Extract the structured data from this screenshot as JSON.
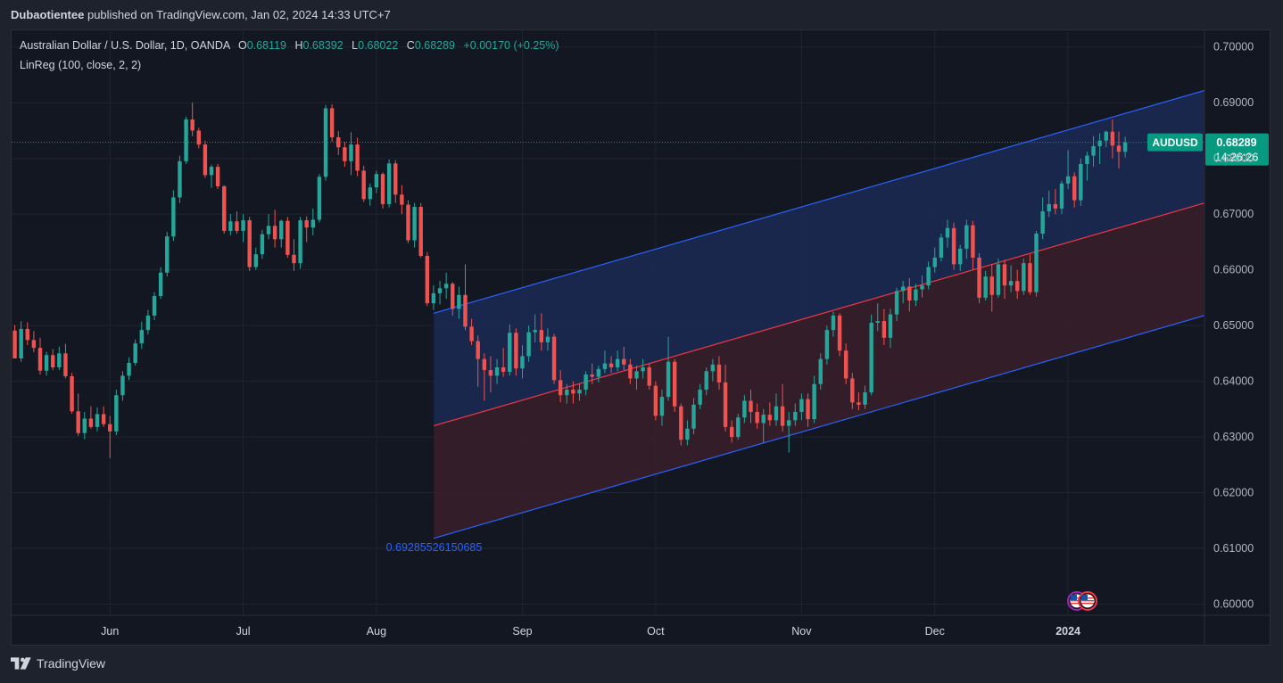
{
  "header": {
    "author": "Dubaotientee",
    "published_text": "published on TradingView.com, Jan 02, 2024 14:33 UTC+7"
  },
  "legend": {
    "instrument": "Australian Dollar / U.S. Dollar, 1D, OANDA",
    "o_label": "O",
    "o_value": "0.68119",
    "h_label": "H",
    "h_value": "0.68392",
    "l_label": "L",
    "l_value": "0.68022",
    "c_label": "C",
    "c_value": "0.68289",
    "change": "+0.00170 (+0.25%)",
    "indicator": "LinReg (100, close, 2, 2)"
  },
  "footer": {
    "brand": "TradingView"
  },
  "colors": {
    "background": "#131722",
    "grid": "#1f2430",
    "up": "#26a69a",
    "down": "#ef5350",
    "channel_line": "#2962ff",
    "regression_line": "#f23645",
    "upper_fill": "#1a2a52",
    "lower_fill": "#3a1f2a",
    "price_tag": "#089981"
  },
  "chart_data": {
    "type": "candlestick",
    "symbol": "AUDUSD",
    "timeframe": "1D",
    "ylim": [
      0.598,
      0.703
    ],
    "y_ticks": [
      "0.70000",
      "0.69000",
      "0.68000",
      "0.67000",
      "0.66000",
      "0.65000",
      "0.64000",
      "0.63000",
      "0.62000",
      "0.61000",
      "0.60000"
    ],
    "x_ticks": [
      {
        "label": "Jun",
        "index": 15
      },
      {
        "label": "Jul",
        "index": 36
      },
      {
        "label": "Aug",
        "index": 57
      },
      {
        "label": "Sep",
        "index": 80
      },
      {
        "label": "Oct",
        "index": 101
      },
      {
        "label": "Nov",
        "index": 124
      },
      {
        "label": "Dec",
        "index": 145
      },
      {
        "label": "2024",
        "index": 166
      }
    ],
    "index_range": [
      -0.5,
      187.5
    ],
    "current_price": {
      "label": "AUDUSD",
      "value": 0.68289,
      "value_text": "0.68289",
      "countdown": "14:26:26"
    },
    "linreg": {
      "start_index": 66,
      "end_index": 187.5,
      "mid_start": 0.632,
      "mid_end": 0.672,
      "upper_start": 0.6522,
      "upper_end": 0.6922,
      "lower_start": 0.6118,
      "lower_end": 0.6518,
      "label": "0.69285526150685",
      "label_value": 0.6127,
      "label_index": 58.5
    },
    "event_icons": 2,
    "ohlc": [
      [
        0.6491,
        0.6501,
        0.6441,
        0.6441
      ],
      [
        0.6441,
        0.6508,
        0.6435,
        0.6494
      ],
      [
        0.6494,
        0.6506,
        0.6465,
        0.6474
      ],
      [
        0.6474,
        0.649,
        0.6452,
        0.646
      ],
      [
        0.646,
        0.6478,
        0.6412,
        0.6419
      ],
      [
        0.6419,
        0.6453,
        0.641,
        0.6447
      ],
      [
        0.6447,
        0.6458,
        0.642,
        0.6425
      ],
      [
        0.6425,
        0.6462,
        0.642,
        0.645
      ],
      [
        0.645,
        0.6467,
        0.6405,
        0.6409
      ],
      [
        0.6409,
        0.6415,
        0.6342,
        0.6346
      ],
      [
        0.6346,
        0.6378,
        0.6302,
        0.6307
      ],
      [
        0.6307,
        0.6345,
        0.6296,
        0.6333
      ],
      [
        0.6333,
        0.6355,
        0.6315,
        0.6318
      ],
      [
        0.6318,
        0.6353,
        0.631,
        0.6341
      ],
      [
        0.6341,
        0.6355,
        0.6318,
        0.6323
      ],
      [
        0.6323,
        0.6338,
        0.6262,
        0.631
      ],
      [
        0.631,
        0.6385,
        0.6303,
        0.6375
      ],
      [
        0.6375,
        0.6418,
        0.6365,
        0.641
      ],
      [
        0.641,
        0.6443,
        0.6402,
        0.6433
      ],
      [
        0.6433,
        0.6475,
        0.6428,
        0.6468
      ],
      [
        0.6468,
        0.6507,
        0.6458,
        0.6492
      ],
      [
        0.6492,
        0.6528,
        0.6484,
        0.6518
      ],
      [
        0.6518,
        0.656,
        0.651,
        0.6553
      ],
      [
        0.6553,
        0.6605,
        0.6548,
        0.6595
      ],
      [
        0.6595,
        0.6668,
        0.6588,
        0.666
      ],
      [
        0.666,
        0.6743,
        0.6652,
        0.673
      ],
      [
        0.673,
        0.6805,
        0.672,
        0.6795
      ],
      [
        0.6795,
        0.6875,
        0.679,
        0.687
      ],
      [
        0.687,
        0.69,
        0.684,
        0.685
      ],
      [
        0.685,
        0.6855,
        0.6818,
        0.6825
      ],
      [
        0.6825,
        0.6832,
        0.6765,
        0.677
      ],
      [
        0.677,
        0.6789,
        0.6747,
        0.6785
      ],
      [
        0.6785,
        0.679,
        0.6745,
        0.675
      ],
      [
        0.675,
        0.6752,
        0.6665,
        0.667
      ],
      [
        0.667,
        0.67,
        0.6662,
        0.6687
      ],
      [
        0.6687,
        0.6705,
        0.6665,
        0.667
      ],
      [
        0.667,
        0.67,
        0.665,
        0.6689
      ],
      [
        0.6689,
        0.6695,
        0.6598,
        0.6605
      ],
      [
        0.6605,
        0.664,
        0.66,
        0.6628
      ],
      [
        0.6628,
        0.6672,
        0.662,
        0.6664
      ],
      [
        0.6664,
        0.67,
        0.6655,
        0.6679
      ],
      [
        0.6679,
        0.6708,
        0.664,
        0.6655
      ],
      [
        0.6655,
        0.669,
        0.664,
        0.6688
      ],
      [
        0.6688,
        0.6695,
        0.6622,
        0.6627
      ],
      [
        0.6627,
        0.6655,
        0.6598,
        0.6612
      ],
      [
        0.6612,
        0.6695,
        0.6602,
        0.6689
      ],
      [
        0.6689,
        0.6696,
        0.665,
        0.6676
      ],
      [
        0.6676,
        0.671,
        0.6662,
        0.669
      ],
      [
        0.669,
        0.6772,
        0.6685,
        0.6767
      ],
      [
        0.6767,
        0.6896,
        0.676,
        0.689
      ],
      [
        0.689,
        0.6897,
        0.683,
        0.6838
      ],
      [
        0.6838,
        0.6849,
        0.6806,
        0.682
      ],
      [
        0.682,
        0.683,
        0.6785,
        0.6795
      ],
      [
        0.6795,
        0.6847,
        0.677,
        0.6825
      ],
      [
        0.6825,
        0.6837,
        0.6768,
        0.6778
      ],
      [
        0.6778,
        0.6787,
        0.6722,
        0.6727
      ],
      [
        0.6727,
        0.6755,
        0.6715,
        0.6748
      ],
      [
        0.6748,
        0.6778,
        0.6738,
        0.6772
      ],
      [
        0.6772,
        0.6775,
        0.671,
        0.6718
      ],
      [
        0.6718,
        0.6798,
        0.6712,
        0.6791
      ],
      [
        0.6791,
        0.6797,
        0.672,
        0.6735
      ],
      [
        0.6735,
        0.6752,
        0.67,
        0.6717
      ],
      [
        0.6717,
        0.6725,
        0.6648,
        0.6653
      ],
      [
        0.6653,
        0.672,
        0.664,
        0.6713
      ],
      [
        0.6713,
        0.672,
        0.6622,
        0.6625
      ],
      [
        0.6625,
        0.6632,
        0.6535,
        0.654
      ],
      [
        0.654,
        0.6572,
        0.6528,
        0.6558
      ],
      [
        0.6558,
        0.658,
        0.6538,
        0.6567
      ],
      [
        0.6567,
        0.6595,
        0.6548,
        0.6575
      ],
      [
        0.6575,
        0.6578,
        0.6518,
        0.653
      ],
      [
        0.653,
        0.657,
        0.6512,
        0.6555
      ],
      [
        0.6555,
        0.661,
        0.6492,
        0.6498
      ],
      [
        0.6498,
        0.6512,
        0.6465,
        0.6472
      ],
      [
        0.6472,
        0.6482,
        0.639,
        0.644
      ],
      [
        0.644,
        0.645,
        0.6365,
        0.642
      ],
      [
        0.642,
        0.6445,
        0.638,
        0.641
      ],
      [
        0.641,
        0.644,
        0.6395,
        0.6425
      ],
      [
        0.6425,
        0.646,
        0.6408,
        0.6417
      ],
      [
        0.6417,
        0.6502,
        0.641,
        0.6487
      ],
      [
        0.6487,
        0.6495,
        0.641,
        0.6423
      ],
      [
        0.6423,
        0.6465,
        0.6405,
        0.6445
      ],
      [
        0.6445,
        0.65,
        0.6435,
        0.6488
      ],
      [
        0.6488,
        0.652,
        0.647,
        0.6492
      ],
      [
        0.6492,
        0.6522,
        0.6455,
        0.647
      ],
      [
        0.647,
        0.6495,
        0.6455,
        0.648
      ],
      [
        0.648,
        0.6485,
        0.6395,
        0.6402
      ],
      [
        0.6402,
        0.642,
        0.6362,
        0.6375
      ],
      [
        0.6375,
        0.6395,
        0.636,
        0.6385
      ],
      [
        0.6385,
        0.64,
        0.636,
        0.6378
      ],
      [
        0.6378,
        0.6395,
        0.6365,
        0.6385
      ],
      [
        0.6385,
        0.6418,
        0.6375,
        0.6412
      ],
      [
        0.6412,
        0.6432,
        0.6395,
        0.6408
      ],
      [
        0.6408,
        0.6428,
        0.6398,
        0.6422
      ],
      [
        0.6422,
        0.6455,
        0.6415,
        0.6432
      ],
      [
        0.6432,
        0.6445,
        0.6415,
        0.6425
      ],
      [
        0.6425,
        0.6455,
        0.6418,
        0.644
      ],
      [
        0.644,
        0.6462,
        0.642,
        0.643
      ],
      [
        0.643,
        0.644,
        0.6395,
        0.6405
      ],
      [
        0.6405,
        0.6428,
        0.6385,
        0.6418
      ],
      [
        0.6418,
        0.644,
        0.6405,
        0.6425
      ],
      [
        0.6425,
        0.6432,
        0.6385,
        0.6392
      ],
      [
        0.6392,
        0.64,
        0.633,
        0.6338
      ],
      [
        0.6338,
        0.6385,
        0.632,
        0.6372
      ],
      [
        0.6372,
        0.648,
        0.6365,
        0.6435
      ],
      [
        0.6435,
        0.644,
        0.6345,
        0.6355
      ],
      [
        0.6355,
        0.636,
        0.6285,
        0.6295
      ],
      [
        0.6295,
        0.633,
        0.6285,
        0.6315
      ],
      [
        0.6315,
        0.637,
        0.6305,
        0.6358
      ],
      [
        0.6358,
        0.6395,
        0.635,
        0.6385
      ],
      [
        0.6385,
        0.6425,
        0.6375,
        0.6418
      ],
      [
        0.6418,
        0.644,
        0.64,
        0.643
      ],
      [
        0.643,
        0.6445,
        0.6385,
        0.6398
      ],
      [
        0.6398,
        0.643,
        0.631,
        0.6318
      ],
      [
        0.6318,
        0.633,
        0.629,
        0.63
      ],
      [
        0.63,
        0.6342,
        0.6295,
        0.6335
      ],
      [
        0.6335,
        0.6375,
        0.6325,
        0.6365
      ],
      [
        0.6365,
        0.6385,
        0.6325,
        0.6345
      ],
      [
        0.6345,
        0.636,
        0.6315,
        0.6325
      ],
      [
        0.6325,
        0.635,
        0.629,
        0.634
      ],
      [
        0.634,
        0.6362,
        0.632,
        0.633
      ],
      [
        0.633,
        0.6378,
        0.632,
        0.6355
      ],
      [
        0.6355,
        0.6395,
        0.631,
        0.632
      ],
      [
        0.632,
        0.6345,
        0.6272,
        0.633
      ],
      [
        0.633,
        0.636,
        0.632,
        0.6345
      ],
      [
        0.6345,
        0.6378,
        0.633,
        0.6368
      ],
      [
        0.6368,
        0.6378,
        0.6318,
        0.6332
      ],
      [
        0.6332,
        0.641,
        0.6325,
        0.6395
      ],
      [
        0.6395,
        0.645,
        0.6385,
        0.644
      ],
      [
        0.644,
        0.65,
        0.643,
        0.6492
      ],
      [
        0.6492,
        0.6525,
        0.648,
        0.6518
      ],
      [
        0.6518,
        0.6522,
        0.6445,
        0.6455
      ],
      [
        0.6455,
        0.6468,
        0.6395,
        0.6405
      ],
      [
        0.6405,
        0.6415,
        0.635,
        0.6362
      ],
      [
        0.6362,
        0.638,
        0.6348,
        0.6358
      ],
      [
        0.6358,
        0.6392,
        0.635,
        0.638
      ],
      [
        0.638,
        0.652,
        0.6375,
        0.6505
      ],
      [
        0.6505,
        0.654,
        0.649,
        0.6508
      ],
      [
        0.6508,
        0.653,
        0.6465,
        0.6478
      ],
      [
        0.6478,
        0.653,
        0.646,
        0.652
      ],
      [
        0.652,
        0.6568,
        0.6508,
        0.6562
      ],
      [
        0.6562,
        0.658,
        0.654,
        0.657
      ],
      [
        0.657,
        0.6585,
        0.6525,
        0.6545
      ],
      [
        0.6545,
        0.6575,
        0.6535,
        0.6565
      ],
      [
        0.6565,
        0.659,
        0.655,
        0.6572
      ],
      [
        0.6572,
        0.6615,
        0.6565,
        0.6605
      ],
      [
        0.6605,
        0.664,
        0.6595,
        0.6622
      ],
      [
        0.6622,
        0.6665,
        0.6615,
        0.6658
      ],
      [
        0.6658,
        0.669,
        0.664,
        0.6675
      ],
      [
        0.6675,
        0.6685,
        0.66,
        0.661
      ],
      [
        0.661,
        0.6645,
        0.6598,
        0.6638
      ],
      [
        0.6638,
        0.669,
        0.662,
        0.668
      ],
      [
        0.668,
        0.6688,
        0.66,
        0.6622
      ],
      [
        0.6622,
        0.663,
        0.654,
        0.655
      ],
      [
        0.655,
        0.6598,
        0.6545,
        0.6588
      ],
      [
        0.6588,
        0.661,
        0.6525,
        0.6555
      ],
      [
        0.6555,
        0.662,
        0.655,
        0.661
      ],
      [
        0.661,
        0.6618,
        0.6548,
        0.6572
      ],
      [
        0.6572,
        0.6608,
        0.656,
        0.658
      ],
      [
        0.658,
        0.66,
        0.6548,
        0.6562
      ],
      [
        0.6562,
        0.662,
        0.6555,
        0.6612
      ],
      [
        0.6612,
        0.6628,
        0.6555,
        0.656
      ],
      [
        0.656,
        0.667,
        0.6552,
        0.6665
      ],
      [
        0.6665,
        0.673,
        0.6655,
        0.6705
      ],
      [
        0.6705,
        0.6742,
        0.6695,
        0.6718
      ],
      [
        0.6718,
        0.6745,
        0.67,
        0.671
      ],
      [
        0.671,
        0.676,
        0.67,
        0.6755
      ],
      [
        0.6755,
        0.6815,
        0.6745,
        0.6768
      ],
      [
        0.6768,
        0.6775,
        0.6712,
        0.6725
      ],
      [
        0.6725,
        0.68,
        0.6715,
        0.679
      ],
      [
        0.679,
        0.6812,
        0.676,
        0.6805
      ],
      [
        0.6805,
        0.684,
        0.6785,
        0.6822
      ],
      [
        0.6822,
        0.6845,
        0.679,
        0.6832
      ],
      [
        0.6832,
        0.685,
        0.682,
        0.6848
      ],
      [
        0.6848,
        0.687,
        0.68,
        0.6823
      ],
      [
        0.6823,
        0.6848,
        0.6782,
        0.6812
      ],
      [
        0.6812,
        0.6839,
        0.6802,
        0.6829
      ]
    ]
  }
}
